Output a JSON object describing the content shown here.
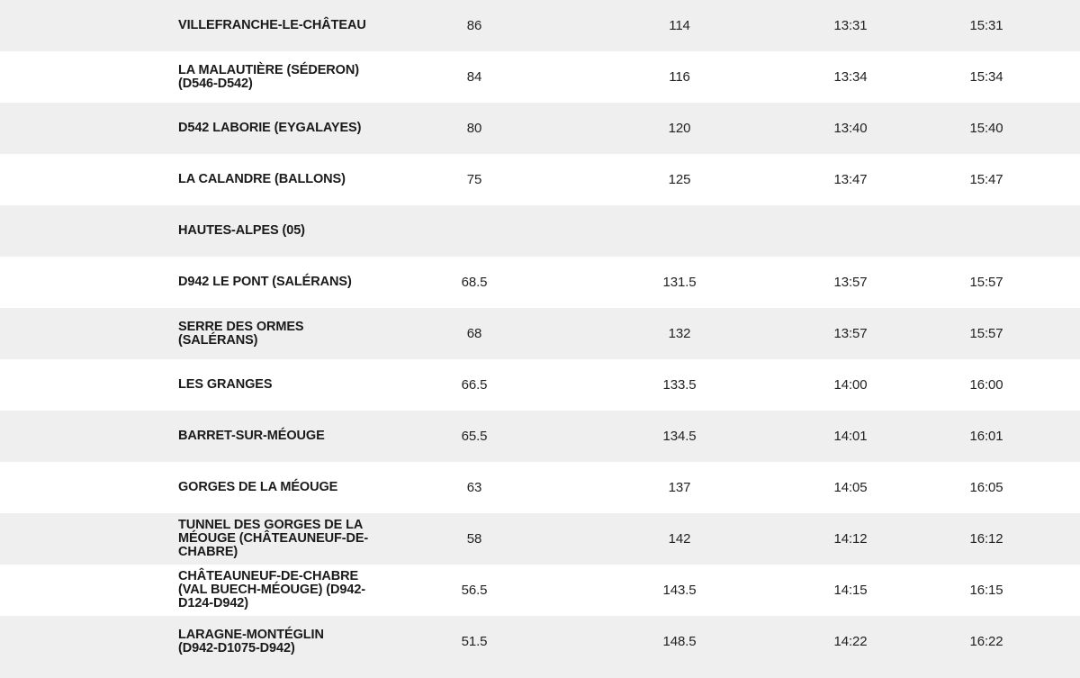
{
  "rows": [
    {
      "place": "VILLEFRANCHE-LE-CHÂTEAU",
      "km_a": "86",
      "km_b": "114",
      "time_a": "13:31",
      "time_b": "15:31",
      "shaded": true
    },
    {
      "place": "LA MALAUTIÈRE (SÉDERON)\n(D546-D542)",
      "km_a": "84",
      "km_b": "116",
      "time_a": "13:34",
      "time_b": "15:34",
      "shaded": false
    },
    {
      "place": "D542 LABORIE (EYGALAYES)",
      "km_a": "80",
      "km_b": "120",
      "time_a": "13:40",
      "time_b": "15:40",
      "shaded": true
    },
    {
      "place": "LA CALANDRE (BALLONS)",
      "km_a": "75",
      "km_b": "125",
      "time_a": "13:47",
      "time_b": "15:47",
      "shaded": false
    },
    {
      "place": "HAUTES-ALPES (05)",
      "km_a": "",
      "km_b": "",
      "time_a": "",
      "time_b": "",
      "shaded": true
    },
    {
      "place": "D942 LE PONT (SALÉRANS)",
      "km_a": "68.5",
      "km_b": "131.5",
      "time_a": "13:57",
      "time_b": "15:57",
      "shaded": false
    },
    {
      "place": "SERRE DES ORMES\n(SALÉRANS)",
      "km_a": "68",
      "km_b": "132",
      "time_a": "13:57",
      "time_b": "15:57",
      "shaded": true
    },
    {
      "place": "LES GRANGES",
      "km_a": "66.5",
      "km_b": "133.5",
      "time_a": "14:00",
      "time_b": "16:00",
      "shaded": false
    },
    {
      "place": "BARRET-SUR-MÉOUGE",
      "km_a": "65.5",
      "km_b": "134.5",
      "time_a": "14:01",
      "time_b": "16:01",
      "shaded": true
    },
    {
      "place": "GORGES DE LA MÉOUGE",
      "km_a": "63",
      "km_b": "137",
      "time_a": "14:05",
      "time_b": "16:05",
      "shaded": false
    },
    {
      "place": "TUNNEL DES GORGES DE LA\nMÉOUGE (CHÂTEAUNEUF-DE-\nCHABRE)",
      "km_a": "58",
      "km_b": "142",
      "time_a": "14:12",
      "time_b": "16:12",
      "shaded": true
    },
    {
      "place": "CHÂTEAUNEUF-DE-CHABRE\n(VAL BUECH-MÉOUGE) (D942-\nD124-D942)",
      "km_a": "56.5",
      "km_b": "143.5",
      "time_a": "14:15",
      "time_b": "16:15",
      "shaded": false
    },
    {
      "place": "LARAGNE-MONTÉGLIN\n(D942-D1075-D942)",
      "km_a": "51.5",
      "km_b": "148.5",
      "time_a": "14:22",
      "time_b": "16:22",
      "shaded": true
    }
  ]
}
